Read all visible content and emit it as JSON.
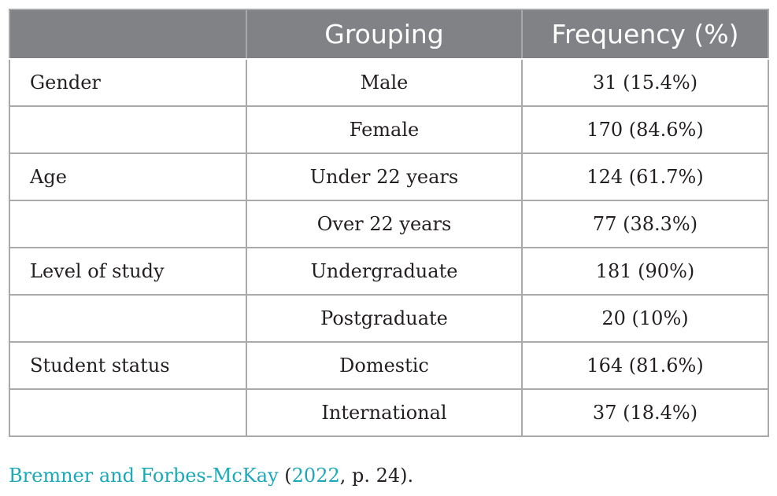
{
  "table": {
    "headers": [
      "",
      "Grouping",
      "Frequency (%)"
    ],
    "rows": [
      [
        "Gender",
        "Male",
        "31 (15.4%)"
      ],
      [
        "",
        "Female",
        "170 (84.6%)"
      ],
      [
        "Age",
        "Under 22 years",
        "124 (61.7%)"
      ],
      [
        "",
        "Over 22 years",
        "77 (38.3%)"
      ],
      [
        "Level of study",
        "Undergraduate",
        "181 (90%)"
      ],
      [
        "",
        "Postgraduate",
        "20 (10%)"
      ],
      [
        "Student status",
        "Domestic",
        "164 (81.6%)"
      ],
      [
        "",
        "International",
        "37 (18.4%)"
      ]
    ]
  },
  "caption": {
    "authors": "Bremner and Forbes-McKay",
    "open_paren": " (",
    "year": "2022",
    "rest": ", p. 24)."
  },
  "colors": {
    "header_bg": "#808285",
    "border": "#a7a9ab",
    "link": "#1aa9b8"
  }
}
